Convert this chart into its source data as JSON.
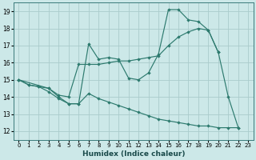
{
  "xlabel": "Humidex (Indice chaleur)",
  "bg_color": "#cce8e8",
  "grid_color": "#aacccc",
  "line_color": "#2d7a6e",
  "xlim": [
    -0.5,
    23.5
  ],
  "ylim": [
    11.5,
    19.5
  ],
  "xticks": [
    0,
    1,
    2,
    3,
    4,
    5,
    6,
    7,
    8,
    9,
    10,
    11,
    12,
    13,
    14,
    15,
    16,
    17,
    18,
    19,
    20,
    21,
    22,
    23
  ],
  "yticks": [
    12,
    13,
    14,
    15,
    16,
    17,
    18,
    19
  ],
  "series_wavy": [
    [
      0,
      15.0
    ],
    [
      1,
      14.7
    ],
    [
      2,
      14.6
    ],
    [
      3,
      14.3
    ],
    [
      4,
      13.9
    ],
    [
      5,
      13.6
    ],
    [
      6,
      13.6
    ],
    [
      7,
      17.1
    ],
    [
      8,
      16.2
    ],
    [
      9,
      16.3
    ],
    [
      10,
      16.2
    ],
    [
      11,
      15.1
    ],
    [
      12,
      15.0
    ],
    [
      13,
      15.4
    ],
    [
      14,
      16.5
    ],
    [
      15,
      19.1
    ],
    [
      16,
      19.1
    ],
    [
      17,
      18.5
    ],
    [
      18,
      18.4
    ],
    [
      19,
      17.9
    ],
    [
      20,
      16.6
    ],
    [
      21,
      14.0
    ],
    [
      22,
      12.2
    ]
  ],
  "series_diagonal": [
    [
      0,
      15.0
    ],
    [
      3,
      14.5
    ],
    [
      4,
      14.1
    ],
    [
      5,
      14.0
    ],
    [
      6,
      15.9
    ],
    [
      7,
      15.9
    ],
    [
      8,
      15.9
    ],
    [
      9,
      16.0
    ],
    [
      10,
      16.1
    ],
    [
      11,
      16.1
    ],
    [
      12,
      16.2
    ],
    [
      13,
      16.3
    ],
    [
      14,
      16.4
    ],
    [
      15,
      17.0
    ],
    [
      16,
      17.5
    ],
    [
      17,
      17.8
    ],
    [
      18,
      18.0
    ],
    [
      19,
      17.9
    ],
    [
      20,
      16.6
    ]
  ],
  "series_declining": [
    [
      0,
      15.0
    ],
    [
      1,
      14.7
    ],
    [
      2,
      14.6
    ],
    [
      3,
      14.5
    ],
    [
      4,
      14.0
    ],
    [
      5,
      13.6
    ],
    [
      6,
      13.6
    ],
    [
      7,
      14.2
    ],
    [
      8,
      13.9
    ],
    [
      9,
      13.7
    ],
    [
      10,
      13.5
    ],
    [
      11,
      13.3
    ],
    [
      12,
      13.1
    ],
    [
      13,
      12.9
    ],
    [
      14,
      12.7
    ],
    [
      15,
      12.6
    ],
    [
      16,
      12.5
    ],
    [
      17,
      12.4
    ],
    [
      18,
      12.3
    ],
    [
      19,
      12.3
    ],
    [
      20,
      12.2
    ],
    [
      21,
      12.2
    ],
    [
      22,
      12.2
    ]
  ]
}
